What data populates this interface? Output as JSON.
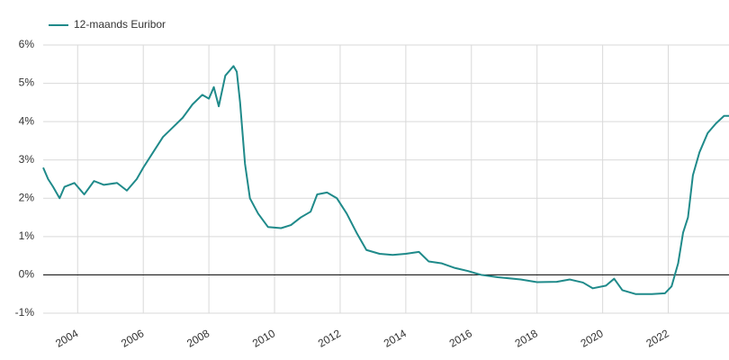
{
  "chart_data": {
    "type": "line",
    "x": [
      2002.95,
      2003.1,
      2003.25,
      2003.45,
      2003.6,
      2003.9,
      2004.2,
      2004.5,
      2004.8,
      2005.2,
      2005.5,
      2005.8,
      2006.0,
      2006.3,
      2006.6,
      2006.9,
      2007.2,
      2007.5,
      2007.8,
      2008.0,
      2008.15,
      2008.3,
      2008.5,
      2008.75,
      2008.85,
      2008.95,
      2009.1,
      2009.25,
      2009.5,
      2009.8,
      2010.2,
      2010.5,
      2010.8,
      2011.1,
      2011.3,
      2011.6,
      2011.9,
      2012.2,
      2012.5,
      2012.8,
      2013.2,
      2013.6,
      2014.0,
      2014.4,
      2014.7,
      2015.1,
      2015.5,
      2015.9,
      2016.3,
      2016.8,
      2017.5,
      2018.0,
      2018.6,
      2019.0,
      2019.4,
      2019.7,
      2020.1,
      2020.35,
      2020.6,
      2021.0,
      2021.5,
      2021.9,
      2022.1,
      2022.3,
      2022.45,
      2022.6,
      2022.75,
      2022.95,
      2023.2,
      2023.45,
      2023.7,
      2023.85
    ],
    "series": [
      {
        "name": "12-maands Euribor",
        "color": "#1f8a8a",
        "values": [
          2.8,
          2.5,
          2.3,
          2.0,
          2.3,
          2.4,
          2.1,
          2.45,
          2.35,
          2.4,
          2.2,
          2.5,
          2.8,
          3.2,
          3.6,
          3.85,
          4.1,
          4.45,
          4.7,
          4.6,
          4.9,
          4.4,
          5.2,
          5.45,
          5.3,
          4.5,
          2.9,
          2.0,
          1.6,
          1.25,
          1.22,
          1.3,
          1.5,
          1.65,
          2.1,
          2.15,
          2.0,
          1.6,
          1.1,
          0.65,
          0.55,
          0.52,
          0.55,
          0.6,
          0.35,
          0.3,
          0.18,
          0.1,
          0.0,
          -0.06,
          -0.12,
          -0.19,
          -0.18,
          -0.12,
          -0.2,
          -0.35,
          -0.28,
          -0.1,
          -0.4,
          -0.5,
          -0.5,
          -0.48,
          -0.3,
          0.3,
          1.1,
          1.5,
          2.6,
          3.2,
          3.7,
          3.95,
          4.15,
          4.15
        ]
      }
    ],
    "xlim": [
      2002.95,
      2023.85
    ],
    "xticks": [
      2004,
      2006,
      2008,
      2010,
      2012,
      2014,
      2016,
      2018,
      2020,
      2022
    ],
    "ylim": [
      -1,
      6
    ],
    "yticks": [
      {
        "value": -1,
        "label": "-1%"
      },
      {
        "value": 0,
        "label": "0%"
      },
      {
        "value": 1,
        "label": "1%"
      },
      {
        "value": 2,
        "label": "2%"
      },
      {
        "value": 3,
        "label": "3%"
      },
      {
        "value": 4,
        "label": "4%"
      },
      {
        "value": 5,
        "label": "5%"
      },
      {
        "value": 6,
        "label": "6%"
      }
    ],
    "grid": true
  }
}
